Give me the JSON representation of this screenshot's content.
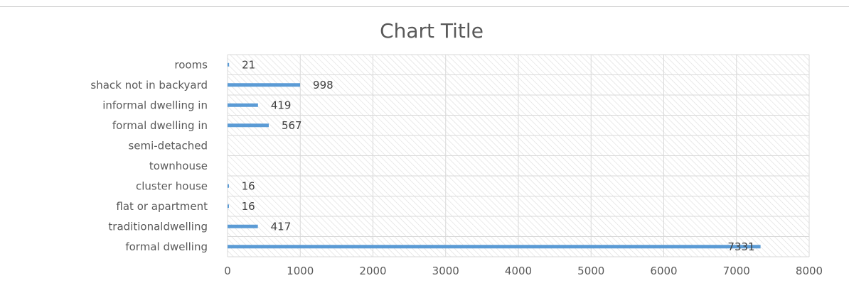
{
  "chart_data": {
    "type": "bar",
    "orientation": "horizontal",
    "title": "Chart Title",
    "xlabel": "",
    "ylabel": "",
    "categories": [
      "formal dwelling",
      "traditionaldwelling",
      "flat or apartment",
      "cluster house",
      "townhouse",
      "semi-detached",
      "formal dwelling in",
      "informal dwelling in",
      "shack not in backyard",
      "rooms"
    ],
    "values": [
      7331,
      417,
      16,
      16,
      null,
      null,
      567,
      419,
      998,
      21
    ],
    "data_labels": [
      "7331",
      "417",
      "16",
      "16",
      "",
      "",
      "567",
      "419",
      "998",
      "21"
    ],
    "xlim": [
      0,
      8000
    ],
    "xticks": [
      "0",
      "1000",
      "2000",
      "3000",
      "4000",
      "5000",
      "6000",
      "7000",
      "8000"
    ],
    "grid": true,
    "legend": "none",
    "colors": {
      "bar": "#5b9bd5",
      "grid": "#d9d9d9",
      "text": "#595959"
    }
  }
}
